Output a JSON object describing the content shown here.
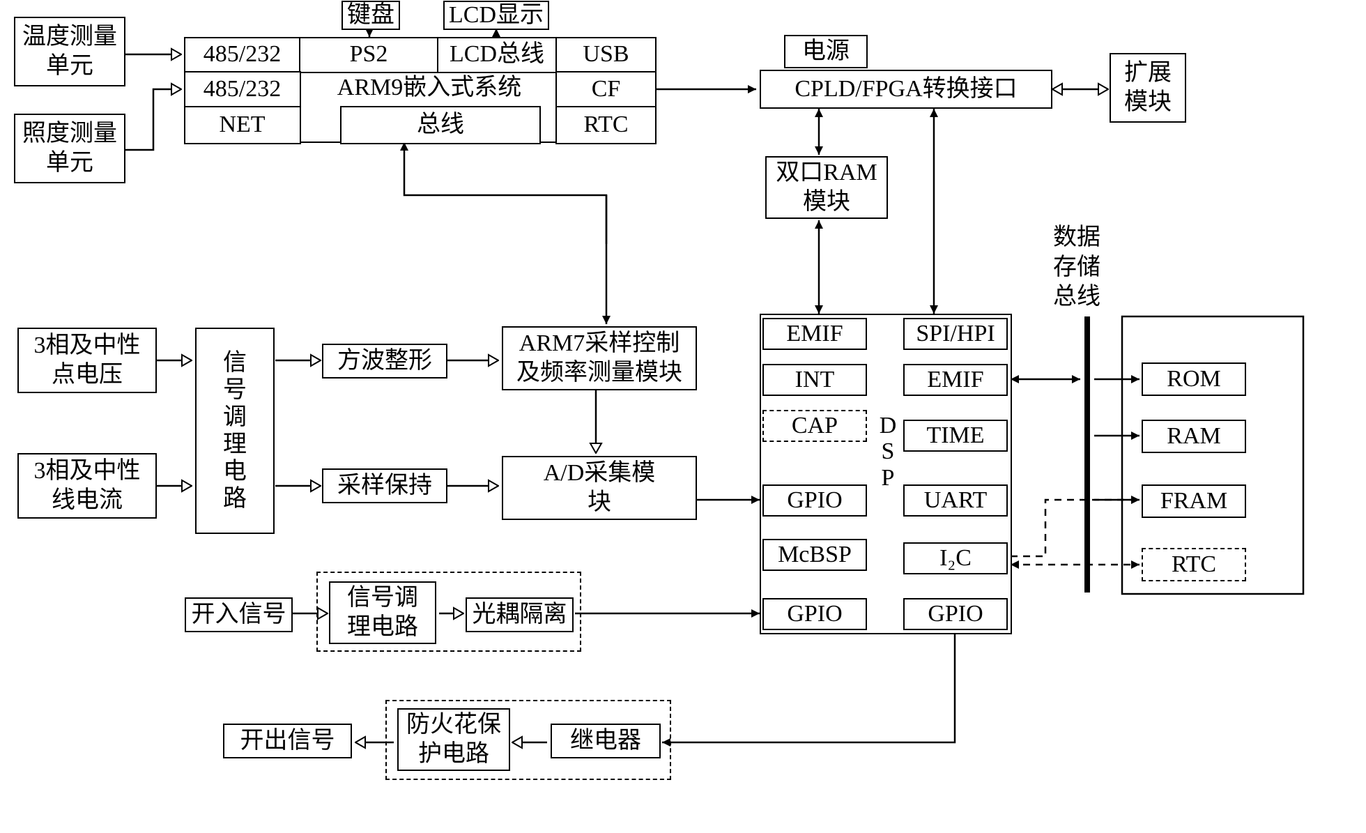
{
  "top_left": {
    "temp_unit": "温度测量\n单元",
    "illum_unit": "照度测量\n单元"
  },
  "external_inputs": {
    "keyboard": "键盘",
    "lcd_display": "LCD显示"
  },
  "arm9": {
    "title": "ARM9嵌入式系统",
    "ports": {
      "r1c1": "485/232",
      "r1c2": "PS2",
      "r1c3": "LCD总线",
      "r1c4": "USB",
      "r2c1": "485/232",
      "r2c4": "CF",
      "r3c1": "NET",
      "r3c2": "总线",
      "r3c4": "RTC"
    }
  },
  "power": "电源",
  "cpld": "CPLD/FPGA转换接口",
  "ext_module": "扩展\n模块",
  "dual_ram": "双口RAM\n模块",
  "data_bus_label": "数据\n存储\n总线",
  "analog": {
    "voltage": "3相及中性\n点电压",
    "current": "3相及中性\n线电流",
    "cond": "信\n号\n调\n理\n电\n路",
    "square": "方波整形",
    "sample_hold": "采样保持",
    "arm7": "ARM7采样控制\n及频率测量模块",
    "ad": "A/D采集模\n块"
  },
  "digital_in": {
    "label": "开入信号",
    "cond": "信号调\n理电路",
    "opto": "光耦隔离"
  },
  "digital_out": {
    "label": "开出信号",
    "spark": "防火花保\n护电路",
    "relay": "继电器"
  },
  "dsp": {
    "label": "D\nS\nP",
    "left": [
      "EMIF",
      "INT",
      "CAP",
      "GPIO",
      "McBSP",
      "GPIO"
    ],
    "right": [
      "SPI/HPI",
      "EMIF",
      "TIME",
      "UART",
      "I₂C",
      "GPIO"
    ]
  },
  "memory": {
    "rom": "ROM",
    "ram": "RAM",
    "fram": "FRAM",
    "rtc": "RTC"
  },
  "geom": {
    "stroke": "#000000",
    "stroke_width": 2.5,
    "font_size": 34,
    "arrow_open_size": 14,
    "arrow_solid_size": 12
  }
}
